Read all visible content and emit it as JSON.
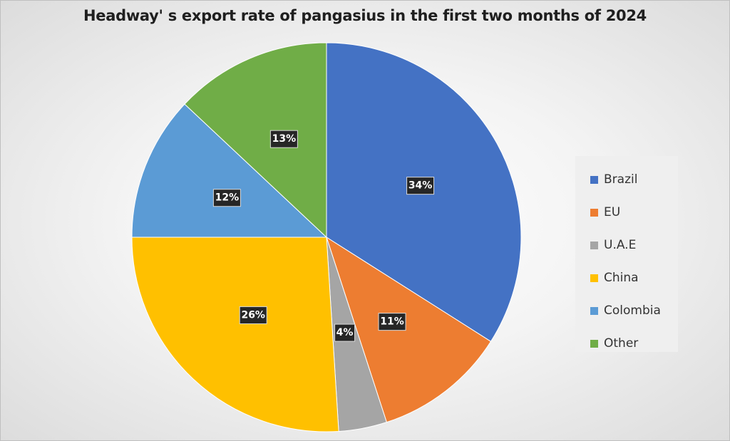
{
  "chart_data": {
    "type": "pie",
    "title": "Headway' s export rate of pangasius in the first two months of 2024",
    "categories": [
      "Brazil",
      "EU",
      "U.A.E",
      "China",
      "Colombia",
      "Other"
    ],
    "values": [
      34,
      11,
      4,
      26,
      12,
      13
    ],
    "data_labels": [
      "34%",
      "11%",
      "4%",
      "26%",
      "12%",
      "13%"
    ],
    "colors": [
      "#4472C4",
      "#ED7D31",
      "#A5A5A5",
      "#FFC000",
      "#5B9BD5",
      "#70AD47"
    ],
    "legend_position": "right",
    "start_angle_deg": 0,
    "direction": "clockwise"
  }
}
